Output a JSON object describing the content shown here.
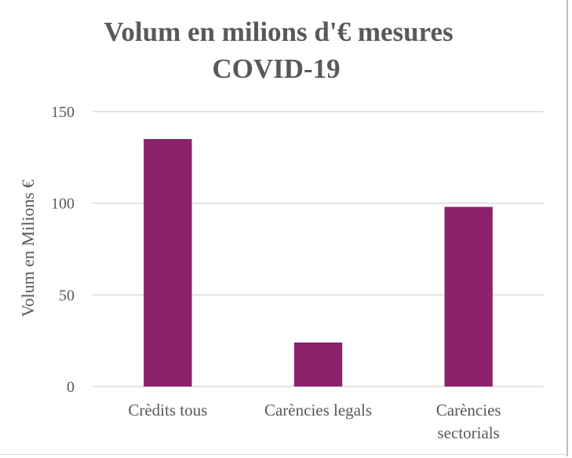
{
  "chart_data": {
    "type": "bar",
    "title": "Volum en milions d'€ mesures COVID-19",
    "title_lines": [
      "Volum en milions d'€ mesures",
      "COVID-19"
    ],
    "ylabel": "Volum en Milions €",
    "xlabel": "",
    "categories": [
      "Crèdits tous",
      "Carències legals",
      "Carències sectorials"
    ],
    "category_lines": [
      [
        "Crèdits tous"
      ],
      [
        "Carències legals"
      ],
      [
        "Carències",
        "sectorials"
      ]
    ],
    "values": [
      135,
      24,
      98
    ],
    "ylim": [
      0,
      150
    ],
    "yticks": [
      0,
      50,
      100,
      150
    ],
    "grid": true,
    "legend": "none",
    "colors": {
      "bar": "#8b226b",
      "text": "#595959",
      "grid": "#d9d9d9"
    }
  }
}
